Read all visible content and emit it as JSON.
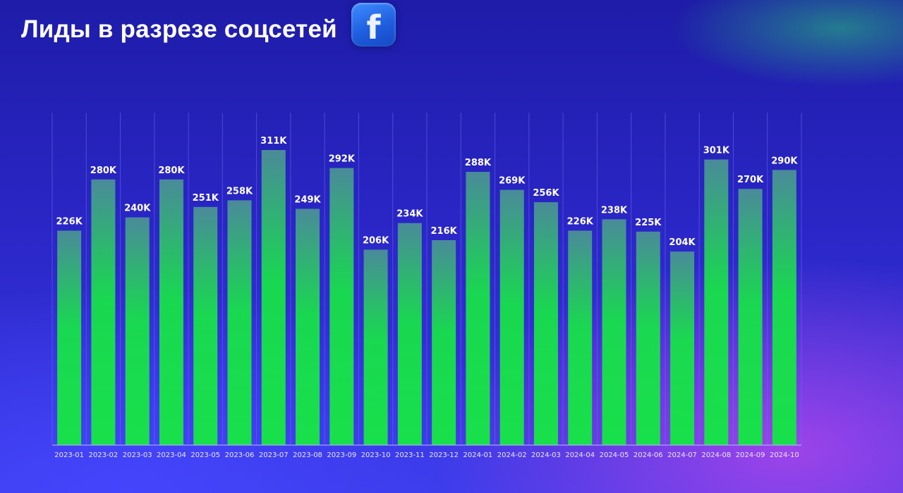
{
  "header": {
    "title": "Лиды в разрезе соцсетей",
    "logo_icon": "facebook-icon"
  },
  "colors": {
    "bar_top": "#4a8a9a",
    "bar_bottom": "#18e04a",
    "grid": "#6a6cf0",
    "axis": "#b9b9ff",
    "label": "#ffffff"
  },
  "chart_data": {
    "type": "bar",
    "title": "Лиды в разрезе соцсетей",
    "xlabel": "",
    "ylabel": "",
    "categories": [
      "2023-01",
      "2023-02",
      "2023-03",
      "2023-04",
      "2023-05",
      "2023-06",
      "2023-07",
      "2023-08",
      "2023-09",
      "2023-10",
      "2023-11",
      "2023-12",
      "2024-01",
      "2024-02",
      "2024-03",
      "2024-04",
      "2024-05",
      "2024-06",
      "2024-07",
      "2024-08",
      "2024-09",
      "2024-10"
    ],
    "values": [
      226,
      280,
      240,
      280,
      251,
      258,
      311,
      249,
      292,
      206,
      234,
      216,
      288,
      269,
      256,
      226,
      238,
      225,
      204,
      301,
      270,
      290
    ],
    "labels": [
      "226K",
      "280K",
      "240K",
      "280K",
      "251K",
      "258K",
      "311K",
      "249K",
      "292K",
      "206K",
      "234K",
      "216K",
      "288K",
      "269K",
      "256K",
      "226K",
      "238K",
      "225K",
      "204K",
      "301K",
      "270K",
      "290K"
    ],
    "unit": "K",
    "ylim": [
      0,
      311
    ],
    "grid": "vertical",
    "legend": "none"
  }
}
